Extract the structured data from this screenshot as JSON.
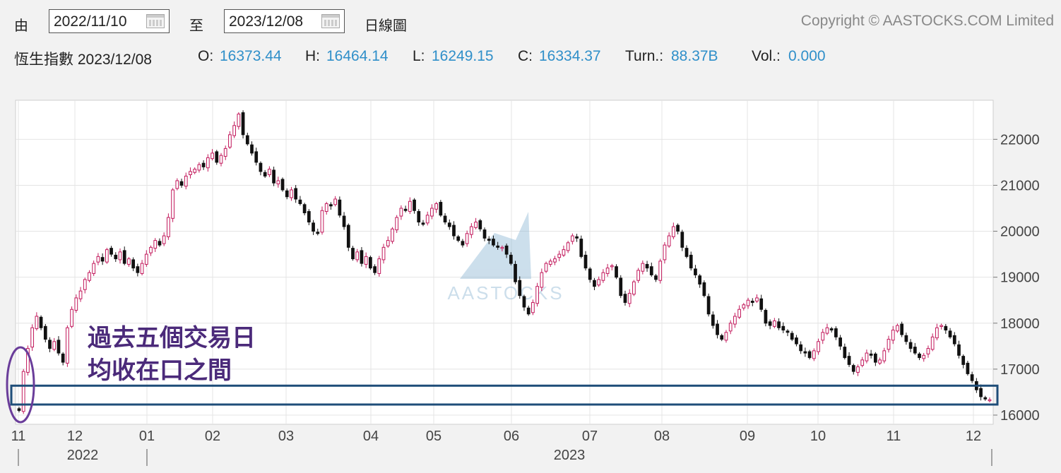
{
  "toolbar": {
    "from_label": "由",
    "from_date": "2022/11/10",
    "to_label": "至",
    "to_date": "2023/12/08",
    "chart_type": "日線圖",
    "copyright": "Copyright © AASTOCKS.COM Limited"
  },
  "info": {
    "name_date": "恆生指數 2023/12/08",
    "open_label": "O:",
    "open": "16373.44",
    "high_label": "H:",
    "high": "16464.14",
    "low_label": "L:",
    "low": "16249.15",
    "close_label": "C:",
    "close": "16334.37",
    "turn_label": "Turn.:",
    "turn": "88.37B",
    "vol_label": "Vol.:",
    "vol": "0.000"
  },
  "annotation": {
    "line1": "過去五個交易日",
    "line2": "均收在口之間"
  },
  "watermark": "AASTOCKS",
  "colors": {
    "up": "#c2185b",
    "down": "#111111",
    "highlight_box": "#1f4e79",
    "ellipse": "#6a3d9a",
    "annotation_text": "#4b2a7a",
    "info_value": "#2f8fc9"
  },
  "chart_data": {
    "type": "candlestick",
    "ylim": [
      15800,
      22700
    ],
    "yticks": [
      "22000",
      "21000",
      "20000",
      "19000",
      "18000",
      "17000",
      "16000"
    ],
    "month_ticks": [
      "11",
      "12",
      "01",
      "02",
      "03",
      "04",
      "05",
      "06",
      "07",
      "08",
      "09",
      "10",
      "11",
      "12"
    ],
    "year_labels": [
      "2022",
      "2023"
    ],
    "highlight_band": [
      16230,
      16640
    ],
    "closes": [
      16100,
      16950,
      17450,
      17900,
      18150,
      17900,
      17650,
      17450,
      17600,
      17350,
      17150,
      17900,
      18300,
      18550,
      18700,
      18950,
      19100,
      19300,
      19450,
      19350,
      19600,
      19500,
      19400,
      19550,
      19300,
      19400,
      19200,
      19100,
      19300,
      19500,
      19650,
      19800,
      19700,
      19900,
      20300,
      20900,
      21100,
      21000,
      21200,
      21300,
      21350,
      21450,
      21400,
      21600,
      21700,
      21500,
      21650,
      21800,
      22100,
      22300,
      22550,
      22100,
      21900,
      21700,
      21500,
      21300,
      21200,
      21350,
      21050,
      21100,
      20900,
      20750,
      20900,
      20700,
      20600,
      20400,
      20200,
      20000,
      19950,
      20450,
      20600,
      20550,
      20700,
      20350,
      20100,
      19650,
      19400,
      19550,
      19300,
      19450,
      19200,
      19100,
      19400,
      19650,
      19800,
      20050,
      20300,
      20500,
      20450,
      20650,
      20450,
      20200,
      20150,
      20350,
      20500,
      20600,
      20350,
      20200,
      20100,
      19900,
      19800,
      19700,
      19950,
      20100,
      20200,
      20050,
      19850,
      19800,
      19700,
      19650,
      19650,
      19500,
      19300,
      18900,
      18600,
      18350,
      18200,
      18450,
      18800,
      19100,
      19300,
      19350,
      19400,
      19500,
      19600,
      19750,
      19900,
      19850,
      19450,
      19200,
      18950,
      18800,
      18950,
      19100,
      19200,
      19250,
      19000,
      18600,
      18450,
      18650,
      18900,
      19150,
      19300,
      19200,
      19050,
      18950,
      19350,
      19700,
      19900,
      20100,
      20000,
      19650,
      19450,
      19200,
      19050,
      18850,
      18600,
      18200,
      17950,
      17750,
      17650,
      17800,
      18000,
      18150,
      18300,
      18400,
      18500,
      18450,
      18550,
      18300,
      18000,
      17950,
      18050,
      17900,
      17850,
      17800,
      17650,
      17550,
      17400,
      17350,
      17250,
      17400,
      17600,
      17800,
      17900,
      17850,
      17700,
      17500,
      17250,
      17100,
      16950,
      17050,
      17200,
      17350,
      17300,
      17150,
      17200,
      17400,
      17650,
      17850,
      17950,
      17750,
      17600,
      17450,
      17350,
      17250,
      17300,
      17450,
      17700,
      17900,
      17950,
      17850,
      17700,
      17550,
      17300,
      17100,
      16900,
      16750,
      16550,
      16400,
      16350,
      16334
    ]
  }
}
